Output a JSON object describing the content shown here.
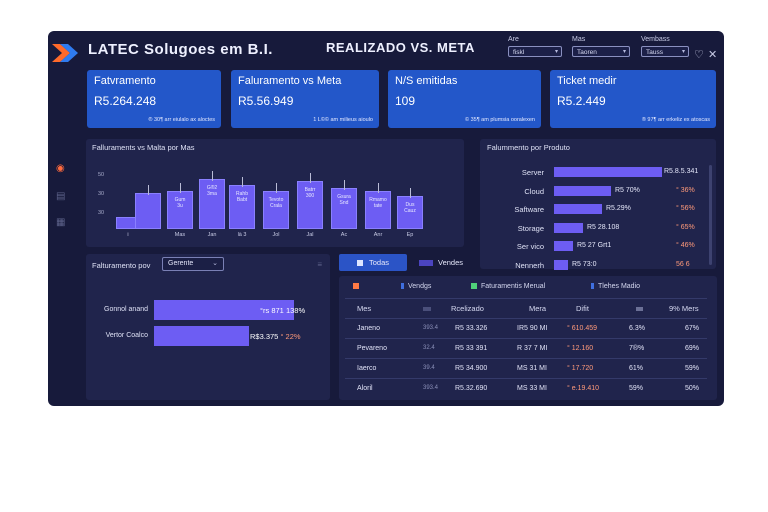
{
  "header": {
    "title": "LATEC Solugoes em B.I.",
    "center_title": "REALIZADO VS. META",
    "filters": [
      {
        "label": "Are",
        "value": "fiskl"
      },
      {
        "label": "Mas",
        "value": "Taoren"
      },
      {
        "label": "Vembass",
        "value": "Tauss"
      }
    ]
  },
  "kpis": [
    {
      "title": "Fatvramento",
      "value": "R5.264.248",
      "sub": "® 30¶ arr eiulalo ax aloctes"
    },
    {
      "title": "Faluramento vs Meta",
      "value": "R5.56.949",
      "sub": "1 L©© am milieus aioulo"
    },
    {
      "title": "N/S emitidas",
      "value": "109",
      "sub": "© 35¶ am plumsia ooralexen"
    },
    {
      "title": "Ticket medir",
      "value": "R5.2.449",
      "sub": "® 97¶ arr erkeliz ex atoscas"
    }
  ],
  "bar_chart": {
    "title": "Falluraments vs Malta por Mas",
    "chart_data": {
      "type": "bar",
      "title": "Falluraments vs Malta por Mas",
      "yticks": [
        "50",
        "30",
        "30"
      ],
      "categories": [
        "i",
        "",
        "Mas",
        "Jan",
        "là 3",
        "Jol",
        "Jal",
        "Ac",
        "Anr",
        "Ep"
      ],
      "values": [
        18,
        56,
        60,
        78,
        68,
        60,
        75,
        64,
        60,
        52
      ],
      "bar_labels": [
        "",
        "",
        "Gum\n3u",
        "G®2\n3ma",
        "Rahb\nBabt",
        "Tevoto\nCrala",
        "Batrr\n300",
        "Gsura\nSnd",
        "Rmamo\ntate",
        "Dus\nCauz"
      ],
      "ylim": [
        0,
        100
      ]
    }
  },
  "products": {
    "title": "Falummento por Produto",
    "rows": [
      {
        "name": "Server",
        "value": "R5.8.5.341",
        "pct": "",
        "fill": 1.0
      },
      {
        "name": "Cloud",
        "value": "R5 70%",
        "pct": "° 36%",
        "fill": 0.53
      },
      {
        "name": "Saftware",
        "value": "R5.29%",
        "pct": "° 56%",
        "fill": 0.44
      },
      {
        "name": "Storage",
        "value": "R5 28.108",
        "pct": "° 65%",
        "fill": 0.27
      },
      {
        "name": "Ser vico",
        "value": "R5 27 Grt1",
        "pct": "° 46%",
        "fill": 0.18
      },
      {
        "name": "Nennerh",
        "value": "R5 73:0",
        "pct": "56 6",
        "fill": 0.13
      }
    ]
  },
  "gerente": {
    "title": "Falturamento pov",
    "dropdown": "Gerente",
    "rows": [
      {
        "name": "Gonnol anand",
        "value": "°rs 871",
        "pct": "138%",
        "fill": 1.0
      },
      {
        "name": "Vertor Coalco",
        "value": "R$3.375",
        "pct": "° 22%",
        "fill": 0.68
      }
    ]
  },
  "tabs": [
    {
      "label": "Todas",
      "active": true
    },
    {
      "label": "Vendes",
      "active": false
    }
  ],
  "table": {
    "legend": [
      {
        "label": "",
        "color": "#ff7a45"
      },
      {
        "label": "Vendgs",
        "color": "#3f6fe0"
      },
      {
        "label": "Faturamentis Merual",
        "color": "#4fd17a"
      },
      {
        "label": "Tlehes Madio",
        "color": "#3f6fe0"
      }
    ],
    "headers": [
      "Mes",
      "",
      "Rcelizado",
      "Mera",
      "Difit",
      "",
      "9% Mers"
    ],
    "rows": [
      [
        "Janeno",
        "393.4",
        "R5 33.326",
        "IR5 90 MI",
        "° 610.459",
        "6.3%",
        "67%"
      ],
      [
        "Pevareno",
        "32.4",
        "R5 33 391",
        "R 37 7 MI",
        "° 12.160",
        "7®%",
        "69%"
      ],
      [
        "Iaerco",
        "39.4",
        "R5 34.900",
        "MS 31 MI",
        "° 17.720",
        "61%",
        "59%"
      ],
      [
        "Aloril",
        "393.4",
        "R5.32.690",
        "MS 33 MI",
        "° e.19.410",
        "59%",
        "50%"
      ]
    ]
  }
}
